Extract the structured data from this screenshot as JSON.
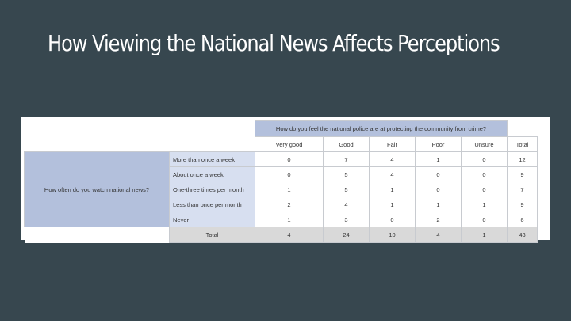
{
  "slide": {
    "title": "How Viewing the National News Affects Perceptions"
  },
  "crosstab": {
    "column_question": "How do you feel the national police are at protecting the community from crime?",
    "row_question": "How often do you watch national news?",
    "columns": [
      "Very good",
      "Good",
      "Fair",
      "Poor",
      "Unsure"
    ],
    "total_label": "Total",
    "rows": [
      {
        "label": "More than once a week",
        "values": [
          "0",
          "7",
          "4",
          "1",
          "0"
        ],
        "total": "12"
      },
      {
        "label": "About once a week",
        "values": [
          "0",
          "5",
          "4",
          "0",
          "0"
        ],
        "total": "9"
      },
      {
        "label": "One-three times per month",
        "values": [
          "1",
          "5",
          "1",
          "0",
          "0"
        ],
        "total": "7"
      },
      {
        "label": "Less than once per month",
        "values": [
          "2",
          "4",
          "1",
          "1",
          "1"
        ],
        "total": "9"
      },
      {
        "label": "Never",
        "values": [
          "1",
          "3",
          "0",
          "2",
          "0"
        ],
        "total": "6"
      }
    ],
    "totals_row": {
      "label": "Total",
      "values": [
        "4",
        "24",
        "10",
        "4",
        "1"
      ],
      "total": "43"
    }
  }
}
